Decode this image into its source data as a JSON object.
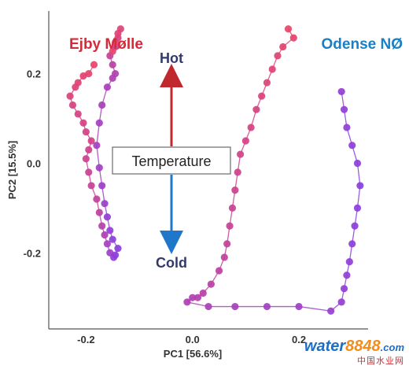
{
  "chart_data": {
    "type": "scatter",
    "title": "",
    "xlabel": "PC1 [56.6%]",
    "ylabel": "PC2 [15.5%]",
    "xlim": [
      -0.27,
      0.33
    ],
    "ylim": [
      -0.37,
      0.34
    ],
    "x_ticks": [
      -0.2,
      0.0,
      0.2
    ],
    "x_tick_labels": [
      "-0.2",
      "0.0",
      "0.2"
    ],
    "y_ticks": [
      -0.2,
      0.0,
      0.2
    ],
    "y_tick_labels": [
      "-0.2",
      "0.0",
      "0.2"
    ],
    "grid": false,
    "color_scale": {
      "hot": "#e8436a",
      "cold": "#8a3fe0"
    },
    "series": [
      {
        "name": "Ejby Mølle",
        "label_color": "#d42a3a",
        "x": [
          -0.185,
          -0.195,
          -0.205,
          -0.215,
          -0.22,
          -0.23,
          -0.225,
          -0.215,
          -0.205,
          -0.2,
          -0.19,
          -0.195,
          -0.2,
          -0.195,
          -0.19,
          -0.18,
          -0.175,
          -0.17,
          -0.165,
          -0.16,
          -0.155,
          -0.148,
          -0.145,
          -0.14,
          -0.15,
          -0.155,
          -0.16,
          -0.165,
          -0.17,
          -0.175,
          -0.18,
          -0.175,
          -0.17,
          -0.16,
          -0.15,
          -0.145,
          -0.15,
          -0.155,
          -0.145,
          -0.14,
          -0.135,
          -0.14,
          -0.145,
          -0.15
        ],
        "y": [
          0.22,
          0.2,
          0.195,
          0.18,
          0.17,
          0.15,
          0.13,
          0.11,
          0.09,
          0.07,
          0.05,
          0.03,
          0.01,
          -0.02,
          -0.05,
          -0.08,
          -0.11,
          -0.14,
          -0.16,
          -0.18,
          -0.2,
          -0.21,
          -0.205,
          -0.19,
          -0.17,
          -0.15,
          -0.12,
          -0.09,
          -0.05,
          -0.01,
          0.04,
          0.09,
          0.13,
          0.17,
          0.19,
          0.2,
          0.22,
          0.24,
          0.26,
          0.28,
          0.3,
          0.29,
          0.27,
          0.25
        ],
        "t": [
          0.0,
          0.03,
          0.06,
          0.09,
          0.12,
          0.15,
          0.18,
          0.2,
          0.22,
          0.24,
          0.26,
          0.28,
          0.3,
          0.33,
          0.36,
          0.4,
          0.45,
          0.52,
          0.6,
          0.7,
          0.8,
          0.9,
          0.95,
          1.0,
          0.95,
          0.92,
          0.88,
          0.84,
          0.8,
          0.76,
          0.72,
          0.7,
          0.68,
          0.66,
          0.62,
          0.58,
          0.5,
          0.4,
          0.3,
          0.2,
          0.12,
          0.08,
          0.05,
          0.02
        ]
      },
      {
        "name": "Odense NØ",
        "label_color": "#1a7fc4",
        "x": [
          0.18,
          0.19,
          0.17,
          0.16,
          0.15,
          0.14,
          0.13,
          0.12,
          0.11,
          0.1,
          0.09,
          0.085,
          0.08,
          0.075,
          0.07,
          0.065,
          0.06,
          0.05,
          0.035,
          0.02,
          0.01,
          0.0,
          -0.01,
          0.03,
          0.08,
          0.14,
          0.2,
          0.26,
          0.28,
          0.285,
          0.29,
          0.295,
          0.3,
          0.305,
          0.31,
          0.315,
          0.31,
          0.3,
          0.29,
          0.285,
          0.28
        ],
        "y": [
          0.3,
          0.28,
          0.26,
          0.24,
          0.21,
          0.18,
          0.15,
          0.12,
          0.08,
          0.05,
          0.02,
          -0.02,
          -0.06,
          -0.1,
          -0.14,
          -0.18,
          -0.21,
          -0.24,
          -0.27,
          -0.29,
          -0.3,
          -0.3,
          -0.31,
          -0.32,
          -0.32,
          -0.32,
          -0.32,
          -0.33,
          -0.31,
          -0.28,
          -0.25,
          -0.22,
          -0.18,
          -0.14,
          -0.1,
          -0.05,
          0.0,
          0.04,
          0.08,
          0.12,
          0.16
        ],
        "t": [
          0.0,
          0.02,
          0.05,
          0.08,
          0.1,
          0.12,
          0.15,
          0.18,
          0.2,
          0.22,
          0.25,
          0.28,
          0.3,
          0.33,
          0.36,
          0.4,
          0.43,
          0.46,
          0.5,
          0.53,
          0.56,
          0.6,
          0.63,
          0.66,
          0.7,
          0.75,
          0.8,
          0.85,
          0.88,
          0.9,
          0.92,
          0.94,
          0.96,
          0.97,
          0.98,
          1.0,
          0.98,
          0.96,
          0.94,
          0.92,
          0.9
        ]
      }
    ],
    "annotations": {
      "hot": "Hot",
      "cold": "Cold",
      "temperature": "Temperature"
    }
  },
  "watermark": {
    "brand_main": "water",
    "brand_accent": "8848",
    "brand_suffix": ".com",
    "subtitle": "中国水业网"
  }
}
